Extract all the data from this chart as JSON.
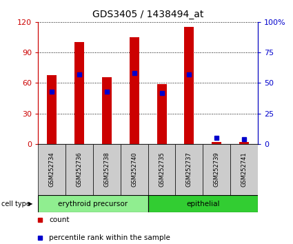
{
  "title": "GDS3405 / 1438494_at",
  "samples": [
    "GSM252734",
    "GSM252736",
    "GSM252738",
    "GSM252740",
    "GSM252735",
    "GSM252737",
    "GSM252739",
    "GSM252741"
  ],
  "counts": [
    68,
    100,
    66,
    105,
    59,
    115,
    2,
    2
  ],
  "percentile_ranks": [
    43,
    57,
    43,
    58,
    42,
    57,
    5,
    4
  ],
  "ylim_left": [
    0,
    120
  ],
  "ylim_right": [
    0,
    100
  ],
  "yticks_left": [
    0,
    30,
    60,
    90,
    120
  ],
  "ytick_labels_left": [
    "0",
    "30",
    "60",
    "90",
    "120"
  ],
  "yticks_right": [
    0,
    25,
    50,
    75,
    100
  ],
  "ytick_labels_right": [
    "0",
    "25",
    "50",
    "75",
    "100%"
  ],
  "groups": [
    {
      "label": "erythroid precursor",
      "indices": [
        0,
        1,
        2,
        3
      ],
      "color": "#90EE90"
    },
    {
      "label": "epithelial",
      "indices": [
        4,
        5,
        6,
        7
      ],
      "color": "#32CD32"
    }
  ],
  "cell_type_label": "cell type",
  "bar_color": "#CC0000",
  "percentile_color": "#0000CC",
  "bar_width": 0.35,
  "background_color": "#ffffff",
  "tick_area_color": "#cccccc",
  "legend_count_label": "count",
  "legend_percentile_label": "percentile rank within the sample"
}
